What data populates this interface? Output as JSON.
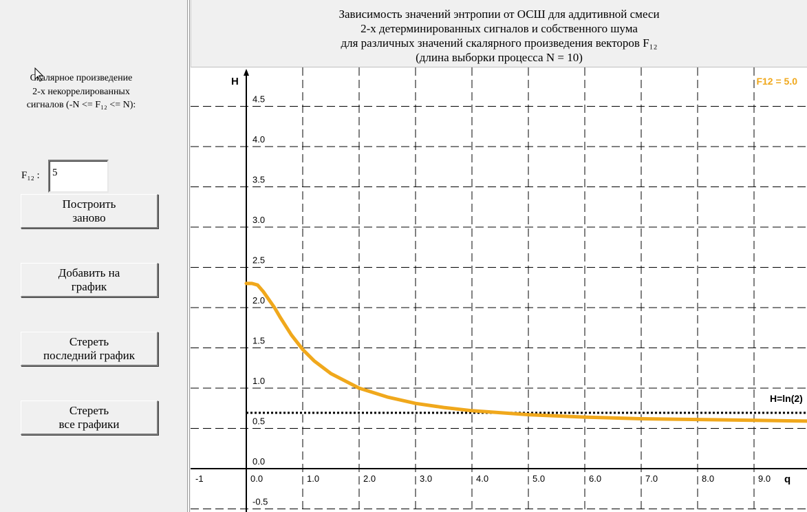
{
  "sidebar": {
    "description_lines": [
      "Скалярное произведение",
      "2-х некоррелированных",
      "сигналов (-N <= F₁₂ <=  N):"
    ],
    "f12_label": "F₁₂ :",
    "f12_value": "5",
    "buttons": [
      {
        "line1": "Построить",
        "line2": "заново"
      },
      {
        "line1": "Добавить на",
        "line2": "график"
      },
      {
        "line1": "Стереть",
        "line2": "последний график"
      },
      {
        "line1": "Стереть",
        "line2": "все графики"
      }
    ]
  },
  "header": {
    "title_lines": [
      "Зависимость значений энтропии от ОСШ для аддитивной смеси",
      "2-х детерминированных сигналов и собственного шума",
      "для различных значений скалярного произведения векторов F₁₂",
      "(длина выборки процесса N = 10)"
    ]
  },
  "colors": {
    "curve": "#f0a81c",
    "curve_label": "#f0a81c",
    "axis": "#000000",
    "grid": "#000000"
  },
  "chart_data": {
    "type": "line",
    "xlabel": "q",
    "ylabel": "H",
    "xlim": [
      -1,
      9.9
    ],
    "ylim": [
      -0.7,
      4.9
    ],
    "x_ticks": [
      -1,
      0,
      1,
      2,
      3,
      4,
      5,
      6,
      7,
      8,
      9
    ],
    "x_tick_labels": [
      "-1",
      "0.0",
      "1.0",
      "2.0",
      "3.0",
      "4.0",
      "5.0",
      "6.0",
      "7.0",
      "8.0",
      "9.0"
    ],
    "y_ticks": [
      -0.5,
      0,
      0.5,
      1,
      1.5,
      2,
      2.5,
      3,
      3.5,
      4,
      4.5
    ],
    "y_tick_labels": [
      "-0.5",
      "0.0",
      "0.5",
      "1.0",
      "1.5",
      "2.0",
      "2.5",
      "3.0",
      "3.5",
      "4.0",
      "4.5"
    ],
    "grid": true,
    "legend_position": "top-right",
    "series": [
      {
        "name": "F12 = 5.0",
        "x": [
          0,
          0.1,
          0.2,
          0.3,
          0.4,
          0.5,
          0.6,
          0.8,
          1.0,
          1.2,
          1.5,
          2.0,
          2.5,
          3.0,
          3.5,
          4.0,
          5.0,
          6.0,
          7.0,
          8.0,
          9.0,
          10.0
        ],
        "y": [
          2.3,
          2.3,
          2.28,
          2.2,
          2.1,
          2.0,
          1.88,
          1.66,
          1.48,
          1.34,
          1.18,
          1.0,
          0.89,
          0.81,
          0.76,
          0.72,
          0.67,
          0.64,
          0.62,
          0.61,
          0.6,
          0.59
        ]
      }
    ],
    "reference_line": {
      "label": "H=ln(2)",
      "y": 0.693
    }
  }
}
